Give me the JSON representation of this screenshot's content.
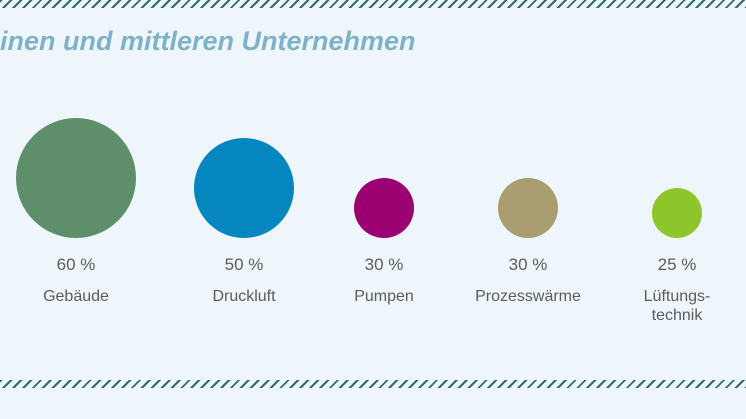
{
  "title": "inen und mittleren Unternehmen",
  "chart_data": {
    "type": "bubble",
    "title": "inen und mittleren Unternehmen",
    "unit": "%",
    "categories": [
      "Gebäude",
      "Druckluft",
      "Pumpen",
      "Prozesswärme",
      "Lüftungstechnik"
    ],
    "values": [
      60,
      50,
      30,
      30,
      25
    ],
    "value_labels": [
      "60 %",
      "50 %",
      "30 %",
      "30 %",
      "25 %"
    ],
    "label_lines": [
      [
        "Gebäude"
      ],
      [
        "Druckluft"
      ],
      [
        "Pumpen"
      ],
      [
        "Prozesswärme"
      ],
      [
        "Lüftungs-",
        "technik"
      ]
    ],
    "colors": [
      "#5f8f6a",
      "#0586bf",
      "#9c0172",
      "#ab9d72",
      "#8cc62a"
    ]
  },
  "decor": {
    "stripe_color": "#2f6b6b",
    "background": "#eef6fb",
    "title_color": "#7fb2c8"
  }
}
